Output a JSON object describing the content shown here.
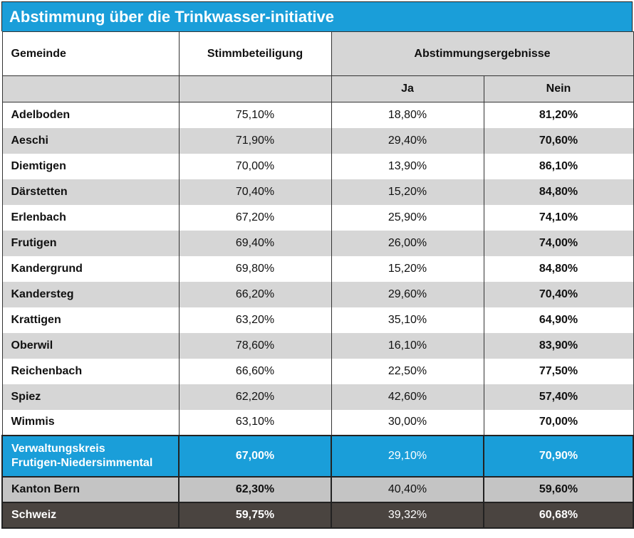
{
  "title": "Abstimmung über die Trinkwasser-initiative",
  "headers": {
    "gemeinde": "Gemeinde",
    "stimmbeteiligung": "Stimmbeteiligung",
    "ergebnisse": "Abstimmungsergebnisse",
    "ja": "Ja",
    "nein": "Nein"
  },
  "rows": [
    {
      "gemeinde": "Adelboden",
      "beteiligung": "75,10%",
      "ja": "18,80%",
      "nein": "81,20%"
    },
    {
      "gemeinde": "Aeschi",
      "beteiligung": "71,90%",
      "ja": "29,40%",
      "nein": "70,60%"
    },
    {
      "gemeinde": "Diemtigen",
      "beteiligung": "70,00%",
      "ja": "13,90%",
      "nein": "86,10%"
    },
    {
      "gemeinde": "Därstetten",
      "beteiligung": "70,40%",
      "ja": "15,20%",
      "nein": "84,80%"
    },
    {
      "gemeinde": "Erlenbach",
      "beteiligung": "67,20%",
      "ja": "25,90%",
      "nein": "74,10%"
    },
    {
      "gemeinde": "Frutigen",
      "beteiligung": "69,40%",
      "ja": "26,00%",
      "nein": "74,00%"
    },
    {
      "gemeinde": "Kandergrund",
      "beteiligung": "69,80%",
      "ja": "15,20%",
      "nein": "84,80%"
    },
    {
      "gemeinde": "Kandersteg",
      "beteiligung": "66,20%",
      "ja": "29,60%",
      "nein": "70,40%"
    },
    {
      "gemeinde": "Krattigen",
      "beteiligung": "63,20%",
      "ja": "35,10%",
      "nein": "64,90%"
    },
    {
      "gemeinde": "Oberwil",
      "beteiligung": "78,60%",
      "ja": "16,10%",
      "nein": "83,90%"
    },
    {
      "gemeinde": "Reichenbach",
      "beteiligung": "66,60%",
      "ja": "22,50%",
      "nein": "77,50%"
    },
    {
      "gemeinde": "Spiez",
      "beteiligung": "62,20%",
      "ja": "42,60%",
      "nein": "57,40%"
    },
    {
      "gemeinde": "Wimmis",
      "beteiligung": "63,10%",
      "ja": "30,00%",
      "nein": "70,00%"
    }
  ],
  "region": {
    "line1": "Verwaltungskreis",
    "line2": "Frutigen-Niedersimmental",
    "beteiligung": "67,00%",
    "ja": "29,10%",
    "nein": "70,90%"
  },
  "canton": {
    "gemeinde": "Kanton Bern",
    "beteiligung": "62,30%",
    "ja": "40,40%",
    "nein": "59,60%"
  },
  "switzerland": {
    "gemeinde": "Schweiz",
    "beteiligung": "59,75%",
    "ja": "39,32%",
    "nein": "60,68%"
  },
  "colors": {
    "accent_blue": "#1a9ed9",
    "row_grey": "#d6d6d6",
    "canton_grey": "#c4c4c4",
    "swiss_dark": "#4a4440"
  }
}
